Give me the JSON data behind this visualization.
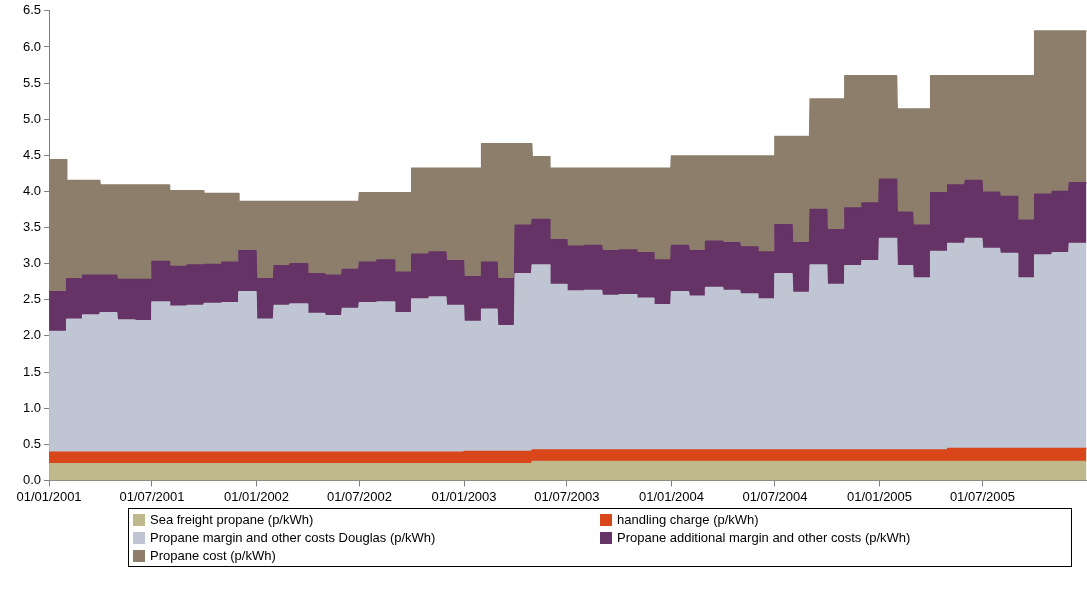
{
  "chart_data": {
    "type": "area",
    "stacked": true,
    "x": [
      "2001-01-01",
      "2001-01-31",
      "2001-02-01",
      "2001-02-28",
      "2001-03-01",
      "2001-03-31",
      "2001-04-01",
      "2001-04-30",
      "2001-05-01",
      "2001-05-31",
      "2001-06-01",
      "2001-06-30",
      "2001-07-01",
      "2001-07-31",
      "2001-08-01",
      "2001-08-31",
      "2001-09-01",
      "2001-09-30",
      "2001-10-01",
      "2001-10-31",
      "2001-11-01",
      "2001-11-30",
      "2001-12-01",
      "2001-12-31",
      "2002-01-01",
      "2002-01-31",
      "2002-02-01",
      "2002-02-28",
      "2002-03-01",
      "2002-03-31",
      "2002-04-01",
      "2002-04-30",
      "2002-05-01",
      "2002-05-31",
      "2002-06-01",
      "2002-06-30",
      "2002-07-01",
      "2002-07-31",
      "2002-08-01",
      "2002-08-31",
      "2002-09-01",
      "2002-09-30",
      "2002-10-01",
      "2002-10-31",
      "2002-11-01",
      "2002-11-30",
      "2002-12-01",
      "2002-12-31",
      "2003-01-01",
      "2003-01-31",
      "2003-02-01",
      "2003-02-28",
      "2003-03-01",
      "2003-03-31",
      "2003-04-01",
      "2003-04-30",
      "2003-05-01",
      "2003-05-31",
      "2003-06-01",
      "2003-06-30",
      "2003-07-01",
      "2003-07-31",
      "2003-08-01",
      "2003-08-31",
      "2003-09-01",
      "2003-09-30",
      "2003-10-01",
      "2003-10-31",
      "2003-11-01",
      "2003-11-30",
      "2003-12-01",
      "2003-12-31",
      "2004-01-01",
      "2004-01-31",
      "2004-02-01",
      "2004-02-29",
      "2004-03-01",
      "2004-03-31",
      "2004-04-01",
      "2004-04-30",
      "2004-05-01",
      "2004-05-31",
      "2004-06-01",
      "2004-06-30",
      "2004-07-01",
      "2004-07-31",
      "2004-08-01",
      "2004-08-31",
      "2004-09-01",
      "2004-09-30",
      "2004-10-01",
      "2004-10-31",
      "2004-11-01",
      "2004-11-30",
      "2004-12-01",
      "2004-12-31",
      "2005-01-01",
      "2005-01-31",
      "2005-02-01",
      "2005-02-28",
      "2005-03-01",
      "2005-03-31",
      "2005-04-01",
      "2005-04-30",
      "2005-05-01",
      "2005-05-31",
      "2005-06-01",
      "2005-06-30",
      "2005-07-01",
      "2005-07-31",
      "2005-08-01",
      "2005-08-31",
      "2005-09-01",
      "2005-09-30",
      "2005-10-01",
      "2005-10-31",
      "2005-11-01",
      "2005-11-30",
      "2005-12-01",
      "2005-12-31"
    ],
    "series": [
      {
        "name": "Sea freight propane (p/kWh)",
        "color": "#bfb88a",
        "values": [
          0.23,
          0.23,
          0.23,
          0.23,
          0.23,
          0.23,
          0.23,
          0.23,
          0.23,
          0.23,
          0.23,
          0.23,
          0.23,
          0.23,
          0.23,
          0.23,
          0.23,
          0.23,
          0.23,
          0.23,
          0.23,
          0.23,
          0.23,
          0.23,
          0.23,
          0.23,
          0.23,
          0.23,
          0.23,
          0.23,
          0.23,
          0.23,
          0.23,
          0.23,
          0.23,
          0.23,
          0.23,
          0.23,
          0.23,
          0.23,
          0.23,
          0.23,
          0.23,
          0.23,
          0.23,
          0.23,
          0.23,
          0.23,
          0.23,
          0.23,
          0.23,
          0.23,
          0.23,
          0.23,
          0.23,
          0.23,
          0.26,
          0.26,
          0.26,
          0.26,
          0.26,
          0.26,
          0.26,
          0.26,
          0.26,
          0.26,
          0.26,
          0.26,
          0.26,
          0.26,
          0.26,
          0.26,
          0.26,
          0.26,
          0.26,
          0.26,
          0.26,
          0.26,
          0.26,
          0.26,
          0.26,
          0.26,
          0.26,
          0.26,
          0.26,
          0.26,
          0.26,
          0.26,
          0.26,
          0.26,
          0.26,
          0.26,
          0.26,
          0.26,
          0.26,
          0.26,
          0.26,
          0.26,
          0.26,
          0.26,
          0.26,
          0.26,
          0.26,
          0.26,
          0.26,
          0.26,
          0.26,
          0.26,
          0.26,
          0.26,
          0.26,
          0.26,
          0.26,
          0.26,
          0.26,
          0.26,
          0.26,
          0.26,
          0.26,
          0.26
        ]
      },
      {
        "name": "handling charge (p/kWh)",
        "color": "#d9461a",
        "values": [
          0.16,
          0.16,
          0.16,
          0.16,
          0.16,
          0.16,
          0.16,
          0.16,
          0.16,
          0.16,
          0.16,
          0.16,
          0.16,
          0.16,
          0.16,
          0.16,
          0.16,
          0.16,
          0.16,
          0.16,
          0.16,
          0.16,
          0.16,
          0.16,
          0.16,
          0.16,
          0.16,
          0.16,
          0.16,
          0.16,
          0.16,
          0.16,
          0.16,
          0.16,
          0.16,
          0.16,
          0.16,
          0.16,
          0.16,
          0.16,
          0.16,
          0.16,
          0.16,
          0.16,
          0.16,
          0.16,
          0.16,
          0.16,
          0.17,
          0.17,
          0.17,
          0.17,
          0.17,
          0.17,
          0.17,
          0.17,
          0.16,
          0.16,
          0.16,
          0.16,
          0.16,
          0.16,
          0.16,
          0.16,
          0.16,
          0.16,
          0.16,
          0.16,
          0.16,
          0.16,
          0.16,
          0.16,
          0.16,
          0.16,
          0.16,
          0.16,
          0.16,
          0.16,
          0.16,
          0.16,
          0.16,
          0.16,
          0.16,
          0.16,
          0.16,
          0.16,
          0.16,
          0.16,
          0.16,
          0.16,
          0.16,
          0.16,
          0.16,
          0.16,
          0.16,
          0.16,
          0.16,
          0.16,
          0.16,
          0.16,
          0.16,
          0.16,
          0.16,
          0.16,
          0.18,
          0.18,
          0.18,
          0.18,
          0.18,
          0.18,
          0.18,
          0.18,
          0.18,
          0.18,
          0.18,
          0.18,
          0.18,
          0.18,
          0.18,
          0.18
        ]
      },
      {
        "name": "Propane margin and other costs Douglas (p/kWh)",
        "color": "#c0c5d3",
        "values": [
          1.67,
          1.67,
          1.84,
          1.84,
          1.9,
          1.9,
          1.93,
          1.93,
          1.83,
          1.83,
          1.82,
          1.82,
          2.08,
          2.08,
          2.02,
          2.02,
          2.03,
          2.03,
          2.06,
          2.06,
          2.07,
          2.07,
          2.22,
          2.22,
          1.84,
          1.84,
          2.03,
          2.03,
          2.05,
          2.05,
          1.92,
          1.92,
          1.89,
          1.89,
          1.99,
          1.99,
          2.07,
          2.07,
          2.08,
          2.08,
          1.93,
          1.93,
          2.12,
          2.12,
          2.15,
          2.15,
          2.03,
          2.03,
          1.8,
          1.8,
          1.97,
          1.97,
          1.74,
          1.74,
          2.46,
          2.46,
          2.56,
          2.56,
          2.29,
          2.29,
          2.2,
          2.2,
          2.21,
          2.21,
          2.14,
          2.14,
          2.15,
          2.15,
          2.1,
          2.1,
          2.01,
          2.01,
          2.19,
          2.19,
          2.13,
          2.13,
          2.25,
          2.25,
          2.21,
          2.21,
          2.16,
          2.16,
          2.09,
          2.09,
          2.44,
          2.44,
          2.18,
          2.18,
          2.56,
          2.56,
          2.29,
          2.29,
          2.55,
          2.55,
          2.62,
          2.62,
          2.93,
          2.93,
          2.55,
          2.55,
          2.38,
          2.38,
          2.75,
          2.75,
          2.84,
          2.84,
          2.91,
          2.91,
          2.77,
          2.77,
          2.7,
          2.7,
          2.36,
          2.36,
          2.68,
          2.68,
          2.71,
          2.71,
          2.84,
          2.84
        ]
      },
      {
        "name": "Propane additional margin and other costs (p/kWh)",
        "color": "#663366",
        "values": [
          0.55,
          0.55,
          0.56,
          0.56,
          0.55,
          0.55,
          0.52,
          0.52,
          0.56,
          0.56,
          0.57,
          0.57,
          0.56,
          0.56,
          0.55,
          0.55,
          0.56,
          0.56,
          0.54,
          0.54,
          0.56,
          0.56,
          0.57,
          0.57,
          0.56,
          0.56,
          0.55,
          0.55,
          0.56,
          0.56,
          0.55,
          0.55,
          0.56,
          0.56,
          0.54,
          0.54,
          0.56,
          0.56,
          0.58,
          0.58,
          0.56,
          0.56,
          0.62,
          0.62,
          0.62,
          0.62,
          0.62,
          0.62,
          0.62,
          0.62,
          0.65,
          0.65,
          0.65,
          0.65,
          0.67,
          0.67,
          0.63,
          0.63,
          0.62,
          0.62,
          0.62,
          0.62,
          0.62,
          0.62,
          0.62,
          0.62,
          0.62,
          0.62,
          0.63,
          0.63,
          0.62,
          0.62,
          0.64,
          0.64,
          0.63,
          0.63,
          0.64,
          0.64,
          0.66,
          0.66,
          0.65,
          0.65,
          0.65,
          0.65,
          0.68,
          0.68,
          0.69,
          0.69,
          0.77,
          0.77,
          0.76,
          0.76,
          0.8,
          0.8,
          0.8,
          0.8,
          0.82,
          0.82,
          0.74,
          0.74,
          0.73,
          0.73,
          0.81,
          0.81,
          0.81,
          0.81,
          0.8,
          0.8,
          0.78,
          0.78,
          0.79,
          0.79,
          0.8,
          0.8,
          0.84,
          0.84,
          0.85,
          0.85,
          0.84,
          0.84
        ]
      },
      {
        "name": "Propane cost (p/kWh)",
        "color": "#8c7e6b",
        "values": [
          1.83,
          1.83,
          1.36,
          1.36,
          1.31,
          1.31,
          1.25,
          1.25,
          1.31,
          1.31,
          1.31,
          1.31,
          1.06,
          1.06,
          1.05,
          1.05,
          1.03,
          1.03,
          0.98,
          0.98,
          0.95,
          0.95,
          0.68,
          0.68,
          1.07,
          1.07,
          0.89,
          0.89,
          0.86,
          0.86,
          1.0,
          1.0,
          1.02,
          1.02,
          0.94,
          0.94,
          0.96,
          0.96,
          0.93,
          0.93,
          1.1,
          1.1,
          1.19,
          1.19,
          1.16,
          1.16,
          1.28,
          1.28,
          1.5,
          1.5,
          1.64,
          1.64,
          1.87,
          1.87,
          1.13,
          1.13,
          0.87,
          0.87,
          0.99,
          0.99,
          1.08,
          1.08,
          1.07,
          1.07,
          1.14,
          1.14,
          1.13,
          1.13,
          1.17,
          1.17,
          1.27,
          1.27,
          1.24,
          1.24,
          1.31,
          1.31,
          1.18,
          1.18,
          1.2,
          1.2,
          1.26,
          1.26,
          1.33,
          1.33,
          1.22,
          1.22,
          1.47,
          1.47,
          1.53,
          1.53,
          1.81,
          1.81,
          1.83,
          1.83,
          1.76,
          1.76,
          1.43,
          1.43,
          1.43,
          1.43,
          1.61,
          1.61,
          1.62,
          1.62,
          1.51,
          1.51,
          1.45,
          1.45,
          1.61,
          1.61,
          1.67,
          1.67,
          2.0,
          2.0,
          2.26,
          2.26,
          2.22,
          2.22,
          2.1,
          2.1
        ]
      }
    ],
    "xlim": [
      "2001-01-01",
      "2006-01-01"
    ],
    "xticks": [
      {
        "value": "2001-01-01",
        "label": "01/01/2001"
      },
      {
        "value": "2001-07-01",
        "label": "01/07/2001"
      },
      {
        "value": "2002-01-01",
        "label": "01/01/2002"
      },
      {
        "value": "2002-07-01",
        "label": "01/07/2002"
      },
      {
        "value": "2003-01-01",
        "label": "01/01/2003"
      },
      {
        "value": "2003-07-01",
        "label": "01/07/2003"
      },
      {
        "value": "2004-01-01",
        "label": "01/01/2004"
      },
      {
        "value": "2004-07-01",
        "label": "01/07/2004"
      },
      {
        "value": "2005-01-01",
        "label": "01/01/2005"
      },
      {
        "value": "2005-07-01",
        "label": "01/07/2005"
      }
    ],
    "ylim": [
      0,
      6.5
    ],
    "yticks": [
      {
        "value": 0,
        "label": "0.0"
      },
      {
        "value": 0.5,
        "label": "0.5"
      },
      {
        "value": 1,
        "label": "1.0"
      },
      {
        "value": 1.5,
        "label": "1.5"
      },
      {
        "value": 2,
        "label": "2.0"
      },
      {
        "value": 2.5,
        "label": "2.5"
      },
      {
        "value": 3,
        "label": "3.0"
      },
      {
        "value": 3.5,
        "label": "3.5"
      },
      {
        "value": 4,
        "label": "4.0"
      },
      {
        "value": 4.5,
        "label": "4.5"
      },
      {
        "value": 5,
        "label": "5.0"
      },
      {
        "value": 5.5,
        "label": "5.5"
      },
      {
        "value": 6,
        "label": "6.0"
      },
      {
        "value": 6.5,
        "label": "6.5"
      }
    ],
    "legend": "bottom"
  }
}
